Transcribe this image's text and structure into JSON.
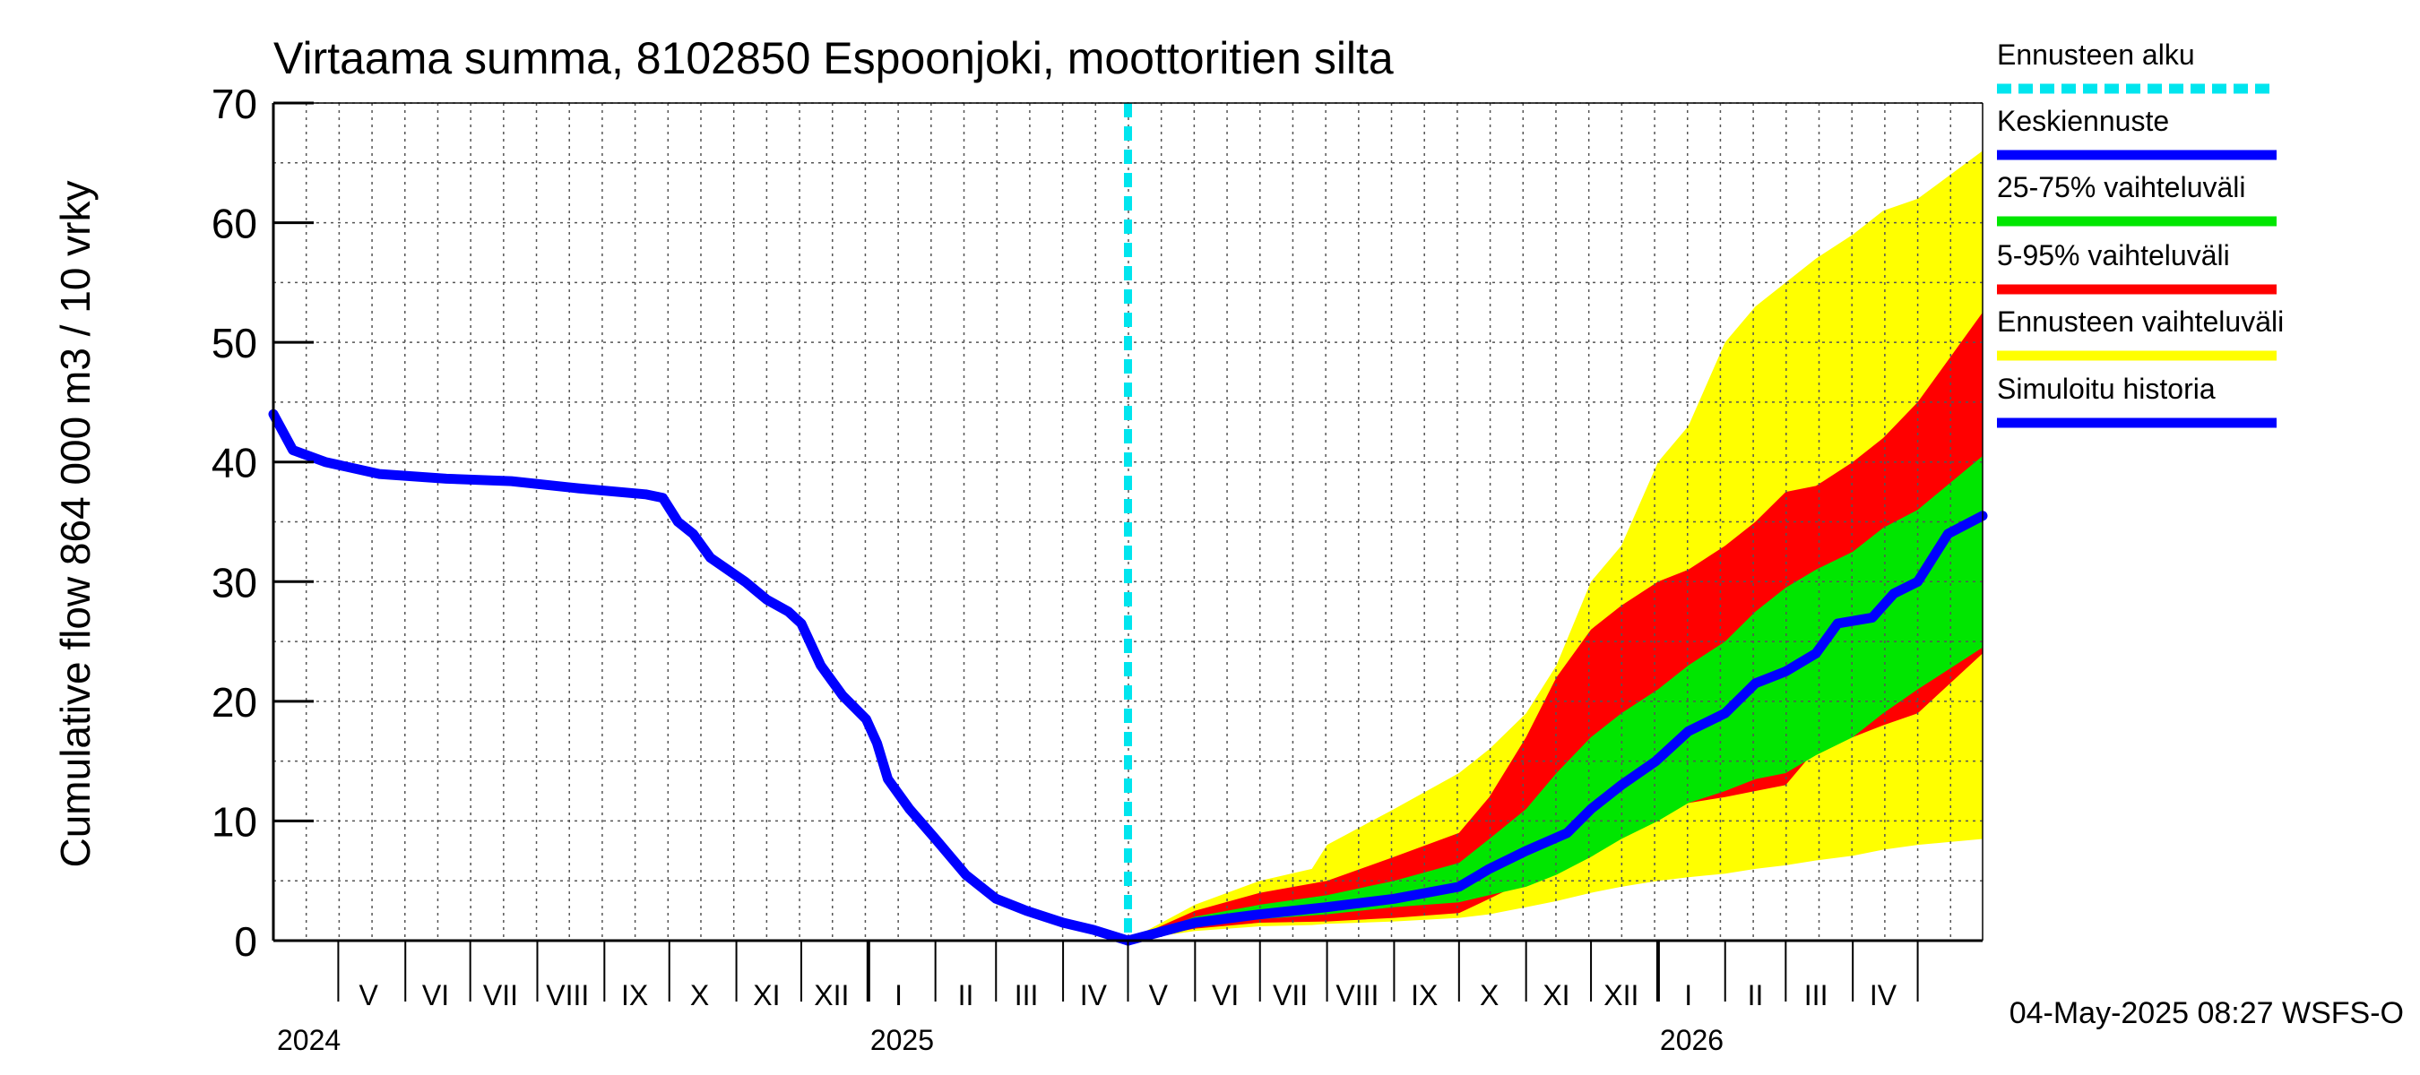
{
  "chart_data": {
    "type": "area",
    "title": "Virtaama summa, 8102850 Espoonjoki, moottoritien silta",
    "ylabel": "Cumulative flow    864 000 m3 / 10 vrky",
    "xlabel": "",
    "ylim": [
      0,
      70
    ],
    "yticks": [
      0,
      10,
      20,
      30,
      40,
      50,
      60,
      70
    ],
    "x_range": [
      "2024-04-01",
      "2026-05-31"
    ],
    "month_labels": [
      {
        "label": "V",
        "date": "2024-05-15"
      },
      {
        "label": "VI",
        "date": "2024-06-15"
      },
      {
        "label": "VII",
        "date": "2024-07-15"
      },
      {
        "label": "VIII",
        "date": "2024-08-15"
      },
      {
        "label": "IX",
        "date": "2024-09-15"
      },
      {
        "label": "X",
        "date": "2024-10-15"
      },
      {
        "label": "XI",
        "date": "2024-11-15"
      },
      {
        "label": "XII",
        "date": "2024-12-15"
      },
      {
        "label": "I",
        "date": "2025-01-15"
      },
      {
        "label": "II",
        "date": "2025-02-15"
      },
      {
        "label": "III",
        "date": "2025-03-15"
      },
      {
        "label": "IV",
        "date": "2025-04-15"
      },
      {
        "label": "V",
        "date": "2025-05-15"
      },
      {
        "label": "VI",
        "date": "2025-06-15"
      },
      {
        "label": "VII",
        "date": "2025-07-15"
      },
      {
        "label": "VIII",
        "date": "2025-08-15"
      },
      {
        "label": "IX",
        "date": "2025-09-15"
      },
      {
        "label": "X",
        "date": "2025-10-15"
      },
      {
        "label": "XI",
        "date": "2025-11-15"
      },
      {
        "label": "XII",
        "date": "2025-12-15"
      },
      {
        "label": "I",
        "date": "2026-01-15"
      },
      {
        "label": "II",
        "date": "2026-02-15"
      },
      {
        "label": "III",
        "date": "2026-03-15"
      },
      {
        "label": "IV",
        "date": "2026-04-15"
      }
    ],
    "year_labels": [
      {
        "label": "2024",
        "date": "2024-05-01"
      },
      {
        "label": "2025",
        "date": "2025-01-01"
      },
      {
        "label": "2026",
        "date": "2026-01-01"
      }
    ],
    "month_starts": [
      "2024-05-01",
      "2024-06-01",
      "2024-07-01",
      "2024-08-01",
      "2024-09-01",
      "2024-10-01",
      "2024-11-01",
      "2024-12-01",
      "2025-01-01",
      "2025-02-01",
      "2025-03-01",
      "2025-04-01",
      "2025-05-01",
      "2025-06-01",
      "2025-07-01",
      "2025-08-01",
      "2025-09-01",
      "2025-10-01",
      "2025-11-01",
      "2025-12-01",
      "2026-01-01",
      "2026-02-01",
      "2026-03-01",
      "2026-04-01",
      "2026-05-01"
    ],
    "forecast_start": "2025-05-01",
    "legend": {
      "placement": "right",
      "items": [
        {
          "label": "Ennusteen alku",
          "color": "#00e5ee",
          "style": "dashed"
        },
        {
          "label": "Keskiennuste",
          "color": "#0000ff",
          "style": "solid"
        },
        {
          "label": "25-75% vaihteluväli",
          "color": "#00e600",
          "style": "solid"
        },
        {
          "label": "5-95% vaihteluväli",
          "color": "#ff0000",
          "style": "solid"
        },
        {
          "label": "Ennusteen vaihteluväli",
          "color": "#ffff00",
          "style": "solid"
        },
        {
          "label": "Simuloitu historia",
          "color": "#0000ff",
          "style": "solid"
        }
      ]
    },
    "series": [
      {
        "name": "Simuloitu historia",
        "color": "#0000ff",
        "points": [
          [
            "2024-04-01",
            44
          ],
          [
            "2024-04-10",
            41
          ],
          [
            "2024-04-25",
            40
          ],
          [
            "2024-05-20",
            39
          ],
          [
            "2024-06-20",
            38.6
          ],
          [
            "2024-07-20",
            38.4
          ],
          [
            "2024-08-20",
            37.8
          ],
          [
            "2024-09-20",
            37.3
          ],
          [
            "2024-09-28",
            37
          ],
          [
            "2024-10-05",
            35
          ],
          [
            "2024-10-12",
            34
          ],
          [
            "2024-10-20",
            32
          ],
          [
            "2024-11-05",
            30
          ],
          [
            "2024-11-15",
            28.5
          ],
          [
            "2024-11-25",
            27.5
          ],
          [
            "2024-12-01",
            26.5
          ],
          [
            "2024-12-10",
            23
          ],
          [
            "2024-12-20",
            20.5
          ],
          [
            "2024-12-31",
            18.5
          ],
          [
            "2025-01-05",
            16.5
          ],
          [
            "2025-01-10",
            13.5
          ],
          [
            "2025-01-20",
            11
          ],
          [
            "2025-02-01",
            8.5
          ],
          [
            "2025-02-15",
            5.5
          ],
          [
            "2025-03-01",
            3.5
          ],
          [
            "2025-03-15",
            2.5
          ],
          [
            "2025-04-01",
            1.5
          ],
          [
            "2025-04-15",
            0.9
          ],
          [
            "2025-05-01",
            0
          ]
        ]
      },
      {
        "name": "Keskiennuste",
        "color": "#0000ff",
        "points": [
          [
            "2025-05-01",
            0
          ],
          [
            "2025-06-01",
            1.5
          ],
          [
            "2025-07-01",
            2.2
          ],
          [
            "2025-08-01",
            2.8
          ],
          [
            "2025-09-01",
            3.5
          ],
          [
            "2025-10-01",
            4.5
          ],
          [
            "2025-10-15",
            6
          ],
          [
            "2025-11-01",
            7.5
          ],
          [
            "2025-11-20",
            9
          ],
          [
            "2025-12-01",
            11
          ],
          [
            "2025-12-15",
            13
          ],
          [
            "2025-12-31",
            15
          ],
          [
            "2026-01-15",
            17.5
          ],
          [
            "2026-02-01",
            19
          ],
          [
            "2026-02-15",
            21.5
          ],
          [
            "2026-03-01",
            22.5
          ],
          [
            "2026-03-15",
            24
          ],
          [
            "2026-03-25",
            26.5
          ],
          [
            "2026-04-10",
            27
          ],
          [
            "2026-04-20",
            29
          ],
          [
            "2026-05-01",
            30
          ],
          [
            "2026-05-15",
            34
          ],
          [
            "2026-05-31",
            35.5
          ]
        ]
      }
    ],
    "bands": [
      {
        "name": "Ennusteen vaihteluväli",
        "color": "#ffff00",
        "points": [
          [
            "2025-05-01",
            0,
            0
          ],
          [
            "2025-06-01",
            0.8,
            3
          ],
          [
            "2025-07-01",
            1.2,
            5
          ],
          [
            "2025-07-25",
            1.3,
            6
          ],
          [
            "2025-08-01",
            1.4,
            8
          ],
          [
            "2025-09-01",
            1.6,
            11
          ],
          [
            "2025-10-01",
            1.9,
            14
          ],
          [
            "2025-10-15",
            2.2,
            16
          ],
          [
            "2025-11-01",
            2.8,
            19
          ],
          [
            "2025-11-15",
            3.3,
            23
          ],
          [
            "2025-12-01",
            4,
            30
          ],
          [
            "2025-12-15",
            4.5,
            33
          ],
          [
            "2026-01-01",
            5,
            40
          ],
          [
            "2026-01-15",
            5.3,
            43
          ],
          [
            "2026-02-01",
            5.6,
            50
          ],
          [
            "2026-02-15",
            6,
            53
          ],
          [
            "2026-03-01",
            6.3,
            55
          ],
          [
            "2026-03-15",
            6.7,
            57
          ],
          [
            "2026-04-01",
            7.1,
            59
          ],
          [
            "2026-04-15",
            7.6,
            61
          ],
          [
            "2026-05-01",
            8,
            62
          ],
          [
            "2026-05-31",
            8.5,
            66
          ]
        ]
      },
      {
        "name": "5-95% vaihteluväli",
        "color": "#ff0000",
        "points": [
          [
            "2025-05-01",
            0,
            0
          ],
          [
            "2025-06-01",
            1,
            2.5
          ],
          [
            "2025-07-01",
            1.5,
            4
          ],
          [
            "2025-08-01",
            1.6,
            5
          ],
          [
            "2025-09-01",
            1.9,
            7
          ],
          [
            "2025-10-01",
            2.3,
            9
          ],
          [
            "2025-10-15",
            3.5,
            12
          ],
          [
            "2025-11-01",
            5,
            17
          ],
          [
            "2025-11-15",
            7,
            22
          ],
          [
            "2025-12-01",
            8.5,
            26
          ],
          [
            "2025-12-15",
            9.5,
            28
          ],
          [
            "2026-01-01",
            10.5,
            30
          ],
          [
            "2026-01-15",
            11.5,
            31
          ],
          [
            "2026-02-01",
            12,
            33
          ],
          [
            "2026-02-15",
            12.5,
            35
          ],
          [
            "2026-03-01",
            13,
            37.5
          ],
          [
            "2026-03-15",
            16,
            38
          ],
          [
            "2026-04-01",
            17,
            40
          ],
          [
            "2026-04-15",
            18,
            42
          ],
          [
            "2026-05-01",
            19,
            45
          ],
          [
            "2026-05-31",
            24,
            52.5
          ]
        ]
      },
      {
        "name": "25-75% vaihteluväli",
        "color": "#00e600",
        "points": [
          [
            "2025-05-01",
            0,
            0
          ],
          [
            "2025-06-01",
            1.2,
            2
          ],
          [
            "2025-07-01",
            1.8,
            3
          ],
          [
            "2025-08-01",
            2.2,
            3.8
          ],
          [
            "2025-09-01",
            2.8,
            5
          ],
          [
            "2025-10-01",
            3.2,
            6.5
          ],
          [
            "2025-10-15",
            3.8,
            8.5
          ],
          [
            "2025-11-01",
            4.5,
            11
          ],
          [
            "2025-11-15",
            5.5,
            14
          ],
          [
            "2025-12-01",
            7,
            17
          ],
          [
            "2025-12-15",
            8.5,
            19
          ],
          [
            "2026-01-01",
            10,
            21
          ],
          [
            "2026-01-15",
            11.5,
            23
          ],
          [
            "2026-02-01",
            12.5,
            25
          ],
          [
            "2026-02-15",
            13.5,
            27.5
          ],
          [
            "2026-03-01",
            14,
            29.5
          ],
          [
            "2026-03-15",
            15.5,
            31
          ],
          [
            "2026-04-01",
            17,
            32.5
          ],
          [
            "2026-04-15",
            19,
            34.5
          ],
          [
            "2026-05-01",
            21,
            36
          ],
          [
            "2026-05-31",
            24.5,
            40.5
          ]
        ]
      }
    ],
    "footer": "04-May-2025 08:27 WSFS-O",
    "grid": true
  }
}
